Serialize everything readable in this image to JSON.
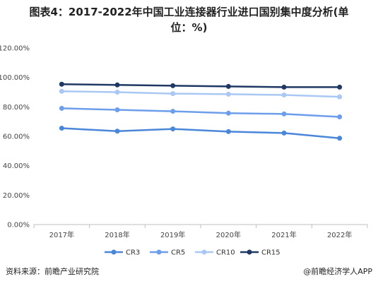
{
  "chart_data": {
    "type": "line",
    "title_line1": "图表4：2017-2022年中国工业连接器行业进口国别集中度分析(单",
    "title_line2": "位：%)",
    "categories": [
      "2017年",
      "2018年",
      "2019年",
      "2020年",
      "2021年",
      "2022年"
    ],
    "yticks": [
      "0.00%",
      "20.00%",
      "40.00%",
      "60.00%",
      "80.00%",
      "100.00%",
      "120.00%"
    ],
    "ylim": [
      0,
      120
    ],
    "series": [
      {
        "name": "CR3",
        "color": "#4a86d9",
        "values": [
          65.5,
          63.5,
          65.0,
          63.2,
          62.2,
          58.7
        ]
      },
      {
        "name": "CR5",
        "color": "#6d9eeb",
        "values": [
          79.0,
          78.0,
          77.0,
          75.7,
          75.2,
          73.2
        ]
      },
      {
        "name": "CR10",
        "color": "#a9c8f3",
        "values": [
          90.6,
          90.0,
          89.0,
          88.6,
          88.1,
          86.8
        ]
      },
      {
        "name": "CR15",
        "color": "#1f3864",
        "values": [
          95.4,
          94.9,
          94.4,
          93.9,
          93.4,
          93.4
        ]
      }
    ],
    "grid": false,
    "legend_position": "bottom"
  },
  "footer": {
    "source": "资料来源：前瞻产业研究院",
    "brand": "@前瞻经济学人APP"
  }
}
